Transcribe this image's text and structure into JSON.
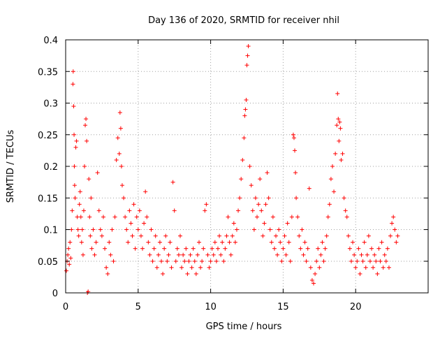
{
  "chart_data": {
    "type": "scatter",
    "title": "Day 136 of 2020, SRMTID for receiver nhil",
    "xlabel": "GPS time / hours",
    "ylabel": "SRMTID / TECUs",
    "xlim": [
      0,
      25
    ],
    "ylim": [
      0,
      0.4
    ],
    "xticks": [
      0,
      5,
      10,
      15,
      20
    ],
    "xtick_labels": [
      "0",
      "5",
      "10",
      "15",
      "20"
    ],
    "yticks": [
      0,
      0.05,
      0.1,
      0.15,
      0.2,
      0.25,
      0.3,
      0.35,
      0.4
    ],
    "ytick_labels": [
      "0",
      "0.05",
      "0.1",
      "0.15",
      "0.2",
      "0.25",
      "0.3",
      "0.35",
      "0.4"
    ],
    "grid": true,
    "marker": "+",
    "color": "#ff0000",
    "data_x_range": [
      0,
      22.9
    ],
    "series": [
      {
        "name": "SRMTID",
        "points": [
          [
            0.05,
            0.035
          ],
          [
            0.1,
            0.05
          ],
          [
            0.15,
            0.06
          ],
          [
            0.2,
            0.07
          ],
          [
            0.25,
            0.045
          ],
          [
            0.3,
            0.08
          ],
          [
            0.35,
            0.055
          ],
          [
            0.4,
            0.1
          ],
          [
            0.45,
            0.13
          ],
          [
            0.5,
            0.33
          ],
          [
            0.52,
            0.35
          ],
          [
            0.55,
            0.295
          ],
          [
            0.58,
            0.25
          ],
          [
            0.6,
            0.2
          ],
          [
            0.62,
            0.17
          ],
          [
            0.65,
            0.15
          ],
          [
            0.7,
            0.23
          ],
          [
            0.75,
            0.24
          ],
          [
            0.8,
            0.12
          ],
          [
            0.85,
            0.1
          ],
          [
            0.9,
            0.09
          ],
          [
            0.95,
            0.14
          ],
          [
            1.0,
            0.16
          ],
          [
            1.05,
            0.12
          ],
          [
            1.1,
            0.08
          ],
          [
            1.15,
            0.1
          ],
          [
            1.2,
            0.06
          ],
          [
            1.25,
            0.13
          ],
          [
            1.3,
            0.2
          ],
          [
            1.35,
            0.265
          ],
          [
            1.4,
            0.275
          ],
          [
            1.45,
            0.24
          ],
          [
            1.5,
            0.0
          ],
          [
            1.55,
            0.002
          ],
          [
            1.6,
            0.18
          ],
          [
            1.65,
            0.12
          ],
          [
            1.7,
            0.09
          ],
          [
            1.75,
            0.15
          ],
          [
            1.8,
            0.07
          ],
          [
            1.9,
            0.1
          ],
          [
            2.0,
            0.06
          ],
          [
            2.1,
            0.08
          ],
          [
            2.2,
            0.19
          ],
          [
            2.3,
            0.13
          ],
          [
            2.4,
            0.1
          ],
          [
            2.5,
            0.09
          ],
          [
            2.6,
            0.12
          ],
          [
            2.7,
            0.07
          ],
          [
            2.8,
            0.04
          ],
          [
            2.9,
            0.03
          ],
          [
            3.0,
            0.08
          ],
          [
            3.1,
            0.06
          ],
          [
            3.2,
            0.1
          ],
          [
            3.3,
            0.05
          ],
          [
            3.4,
            0.12
          ],
          [
            3.5,
            0.21
          ],
          [
            3.6,
            0.245
          ],
          [
            3.7,
            0.22
          ],
          [
            3.75,
            0.285
          ],
          [
            3.8,
            0.26
          ],
          [
            3.85,
            0.2
          ],
          [
            3.9,
            0.17
          ],
          [
            4.0,
            0.15
          ],
          [
            4.1,
            0.12
          ],
          [
            4.2,
            0.1
          ],
          [
            4.3,
            0.08
          ],
          [
            4.4,
            0.13
          ],
          [
            4.5,
            0.11
          ],
          [
            4.6,
            0.09
          ],
          [
            4.7,
            0.14
          ],
          [
            4.8,
            0.07
          ],
          [
            4.9,
            0.12
          ],
          [
            5.0,
            0.1
          ],
          [
            5.1,
            0.13
          ],
          [
            5.2,
            0.09
          ],
          [
            5.3,
            0.07
          ],
          [
            5.4,
            0.11
          ],
          [
            5.5,
            0.16
          ],
          [
            5.6,
            0.12
          ],
          [
            5.7,
            0.08
          ],
          [
            5.8,
            0.06
          ],
          [
            5.9,
            0.1
          ],
          [
            6.0,
            0.05
          ],
          [
            6.1,
            0.07
          ],
          [
            6.2,
            0.09
          ],
          [
            6.3,
            0.04
          ],
          [
            6.4,
            0.06
          ],
          [
            6.5,
            0.08
          ],
          [
            6.6,
            0.05
          ],
          [
            6.7,
            0.03
          ],
          [
            6.8,
            0.07
          ],
          [
            6.9,
            0.09
          ],
          [
            7.0,
            0.05
          ],
          [
            7.1,
            0.06
          ],
          [
            7.2,
            0.08
          ],
          [
            7.3,
            0.04
          ],
          [
            7.4,
            0.175
          ],
          [
            7.5,
            0.13
          ],
          [
            7.6,
            0.05
          ],
          [
            7.7,
            0.07
          ],
          [
            7.8,
            0.06
          ],
          [
            7.9,
            0.09
          ],
          [
            8.0,
            0.04
          ],
          [
            8.1,
            0.06
          ],
          [
            8.2,
            0.05
          ],
          [
            8.3,
            0.07
          ],
          [
            8.4,
            0.03
          ],
          [
            8.5,
            0.05
          ],
          [
            8.6,
            0.06
          ],
          [
            8.7,
            0.04
          ],
          [
            8.8,
            0.07
          ],
          [
            8.9,
            0.05
          ],
          [
            9.0,
            0.03
          ],
          [
            9.1,
            0.06
          ],
          [
            9.2,
            0.08
          ],
          [
            9.3,
            0.04
          ],
          [
            9.4,
            0.05
          ],
          [
            9.5,
            0.07
          ],
          [
            9.6,
            0.13
          ],
          [
            9.7,
            0.14
          ],
          [
            9.8,
            0.06
          ],
          [
            9.9,
            0.04
          ],
          [
            10.0,
            0.05
          ],
          [
            10.1,
            0.07
          ],
          [
            10.2,
            0.06
          ],
          [
            10.3,
            0.08
          ],
          [
            10.4,
            0.05
          ],
          [
            10.5,
            0.07
          ],
          [
            10.6,
            0.09
          ],
          [
            10.7,
            0.06
          ],
          [
            10.8,
            0.08
          ],
          [
            10.9,
            0.05
          ],
          [
            11.0,
            0.07
          ],
          [
            11.1,
            0.09
          ],
          [
            11.2,
            0.12
          ],
          [
            11.3,
            0.08
          ],
          [
            11.4,
            0.06
          ],
          [
            11.5,
            0.09
          ],
          [
            11.6,
            0.11
          ],
          [
            11.7,
            0.08
          ],
          [
            11.8,
            0.1
          ],
          [
            11.9,
            0.13
          ],
          [
            12.0,
            0.15
          ],
          [
            12.1,
            0.18
          ],
          [
            12.2,
            0.21
          ],
          [
            12.3,
            0.245
          ],
          [
            12.35,
            0.28
          ],
          [
            12.4,
            0.29
          ],
          [
            12.45,
            0.305
          ],
          [
            12.5,
            0.36
          ],
          [
            12.55,
            0.375
          ],
          [
            12.6,
            0.39
          ],
          [
            12.7,
            0.2
          ],
          [
            12.8,
            0.17
          ],
          [
            12.9,
            0.13
          ],
          [
            13.0,
            0.1
          ],
          [
            13.1,
            0.15
          ],
          [
            13.2,
            0.12
          ],
          [
            13.3,
            0.14
          ],
          [
            13.4,
            0.18
          ],
          [
            13.5,
            0.13
          ],
          [
            13.6,
            0.09
          ],
          [
            13.7,
            0.11
          ],
          [
            13.8,
            0.14
          ],
          [
            13.9,
            0.19
          ],
          [
            14.0,
            0.15
          ],
          [
            14.1,
            0.1
          ],
          [
            14.2,
            0.08
          ],
          [
            14.3,
            0.12
          ],
          [
            14.4,
            0.07
          ],
          [
            14.5,
            0.09
          ],
          [
            14.6,
            0.06
          ],
          [
            14.7,
            0.1
          ],
          [
            14.8,
            0.08
          ],
          [
            14.9,
            0.05
          ],
          [
            15.0,
            0.07
          ],
          [
            15.1,
            0.09
          ],
          [
            15.2,
            0.06
          ],
          [
            15.3,
            0.11
          ],
          [
            15.4,
            0.08
          ],
          [
            15.5,
            0.05
          ],
          [
            15.6,
            0.12
          ],
          [
            15.7,
            0.25
          ],
          [
            15.75,
            0.245
          ],
          [
            15.8,
            0.225
          ],
          [
            15.85,
            0.19
          ],
          [
            15.9,
            0.15
          ],
          [
            16.0,
            0.12
          ],
          [
            16.1,
            0.09
          ],
          [
            16.2,
            0.07
          ],
          [
            16.3,
            0.1
          ],
          [
            16.4,
            0.06
          ],
          [
            16.5,
            0.08
          ],
          [
            16.6,
            0.05
          ],
          [
            16.7,
            0.07
          ],
          [
            16.8,
            0.165
          ],
          [
            16.9,
            0.04
          ],
          [
            17.0,
            0.02
          ],
          [
            17.1,
            0.015
          ],
          [
            17.2,
            0.03
          ],
          [
            17.3,
            0.05
          ],
          [
            17.4,
            0.07
          ],
          [
            17.5,
            0.04
          ],
          [
            17.6,
            0.06
          ],
          [
            17.7,
            0.08
          ],
          [
            17.8,
            0.05
          ],
          [
            17.9,
            0.07
          ],
          [
            18.0,
            0.09
          ],
          [
            18.1,
            0.12
          ],
          [
            18.2,
            0.14
          ],
          [
            18.3,
            0.18
          ],
          [
            18.4,
            0.2
          ],
          [
            18.5,
            0.16
          ],
          [
            18.6,
            0.22
          ],
          [
            18.7,
            0.265
          ],
          [
            18.75,
            0.315
          ],
          [
            18.8,
            0.275
          ],
          [
            18.85,
            0.24
          ],
          [
            18.9,
            0.27
          ],
          [
            18.95,
            0.26
          ],
          [
            19.0,
            0.21
          ],
          [
            19.1,
            0.22
          ],
          [
            19.2,
            0.15
          ],
          [
            19.3,
            0.13
          ],
          [
            19.4,
            0.12
          ],
          [
            19.5,
            0.09
          ],
          [
            19.6,
            0.07
          ],
          [
            19.7,
            0.05
          ],
          [
            19.8,
            0.08
          ],
          [
            19.9,
            0.06
          ],
          [
            20.0,
            0.04
          ],
          [
            20.1,
            0.05
          ],
          [
            20.2,
            0.07
          ],
          [
            20.3,
            0.03
          ],
          [
            20.4,
            0.06
          ],
          [
            20.5,
            0.05
          ],
          [
            20.6,
            0.08
          ],
          [
            20.7,
            0.04
          ],
          [
            20.8,
            0.06
          ],
          [
            20.9,
            0.09
          ],
          [
            21.0,
            0.05
          ],
          [
            21.1,
            0.07
          ],
          [
            21.2,
            0.04
          ],
          [
            21.3,
            0.06
          ],
          [
            21.4,
            0.05
          ],
          [
            21.5,
            0.03
          ],
          [
            21.6,
            0.07
          ],
          [
            21.7,
            0.05
          ],
          [
            21.8,
            0.08
          ],
          [
            21.9,
            0.04
          ],
          [
            22.0,
            0.06
          ],
          [
            22.1,
            0.05
          ],
          [
            22.2,
            0.07
          ],
          [
            22.3,
            0.04
          ],
          [
            22.4,
            0.09
          ],
          [
            22.5,
            0.11
          ],
          [
            22.6,
            0.12
          ],
          [
            22.7,
            0.1
          ],
          [
            22.8,
            0.08
          ],
          [
            22.9,
            0.09
          ]
        ]
      }
    ]
  }
}
